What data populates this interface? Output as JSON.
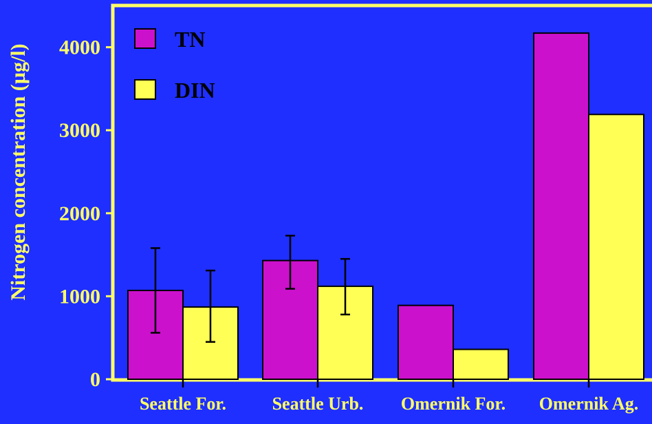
{
  "colors": {
    "background": "#1f2fff",
    "plot_border": "#ffff66",
    "text": "#ffff66",
    "tn": "#cc11cc",
    "din": "#ffff55",
    "outline": "#000000"
  },
  "chart_data": {
    "type": "bar",
    "title": "",
    "xlabel": "",
    "ylabel": "Nitrogen concentration (µg/l)",
    "ylim": [
      0,
      4300
    ],
    "yticks": [
      0,
      1000,
      2000,
      3000,
      4000
    ],
    "ytick_labels": [
      "0",
      "1000",
      "2000",
      "3000",
      "4000"
    ],
    "categories": [
      "Seattle For.",
      "Seattle Urb.",
      "Omernik For.",
      "Omernik Ag."
    ],
    "legend_position": "top-left",
    "grid": false,
    "series": [
      {
        "name": "TN",
        "color": "#cc11cc",
        "values": [
          1070,
          1430,
          890,
          4170
        ],
        "error_low": [
          560,
          1090,
          null,
          null
        ],
        "error_high": [
          1580,
          1730,
          null,
          null
        ]
      },
      {
        "name": "DIN",
        "color": "#ffff55",
        "values": [
          870,
          1120,
          360,
          3190
        ],
        "error_low": [
          450,
          780,
          null,
          null
        ],
        "error_high": [
          1310,
          1450,
          null,
          null
        ]
      }
    ]
  }
}
